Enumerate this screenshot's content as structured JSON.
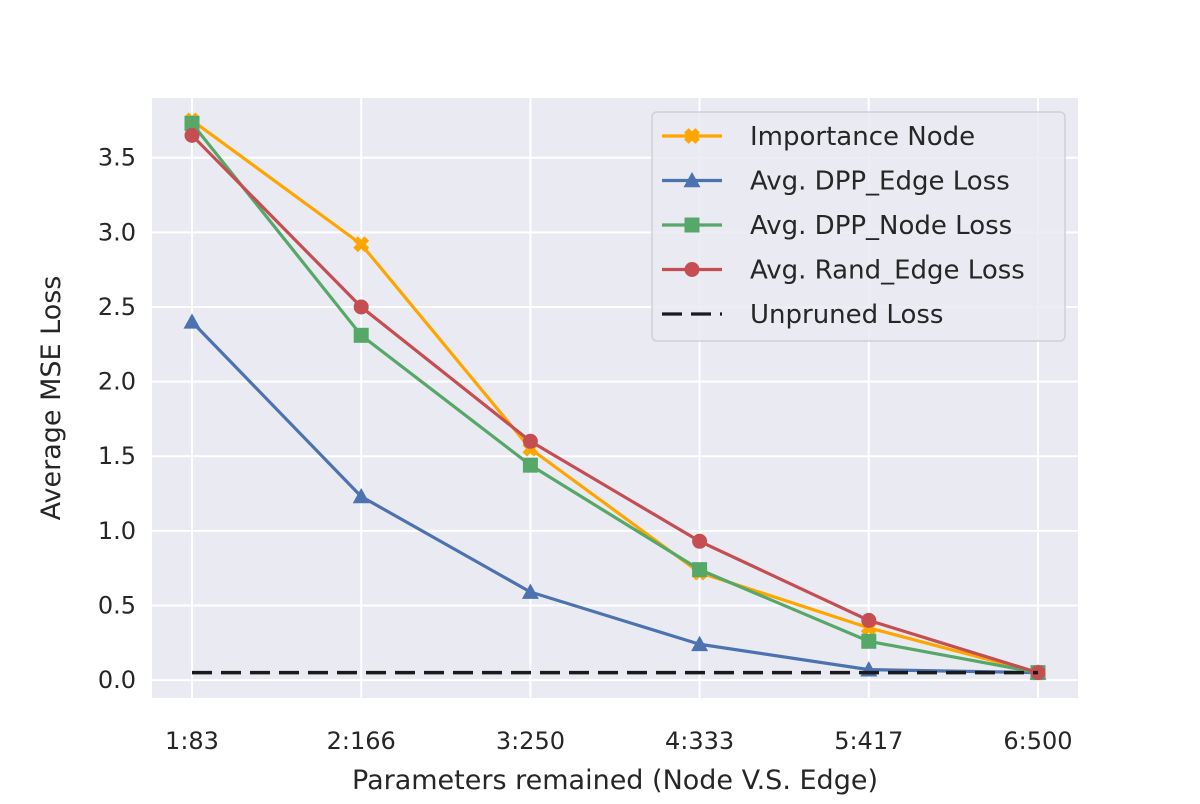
{
  "chart_data": {
    "type": "line",
    "title": "",
    "xlabel": "Parameters remained (Node V.S. Edge)",
    "ylabel": "Average MSE Loss",
    "categories": [
      "1:83",
      "2:166",
      "3:250",
      "4:333",
      "5:417",
      "6:500"
    ],
    "ylim": [
      -0.12,
      3.9
    ],
    "yticks": [
      "0.0",
      "0.5",
      "1.0",
      "1.5",
      "2.0",
      "2.5",
      "3.0",
      "3.5"
    ],
    "ytick_values": [
      0.0,
      0.5,
      1.0,
      1.5,
      2.0,
      2.5,
      3.0,
      3.5
    ],
    "grid": true,
    "legend_position": "top-right",
    "series": [
      {
        "name": "Importance Node",
        "color": "#FFA500",
        "marker": "plus-filled",
        "values": [
          3.75,
          2.92,
          1.55,
          0.72,
          0.35,
          0.05
        ]
      },
      {
        "name": "Avg. DPP_Edge Loss",
        "color": "#4C72B0",
        "marker": "triangle",
        "values": [
          2.4,
          1.23,
          0.59,
          0.24,
          0.07,
          0.05
        ]
      },
      {
        "name": "Avg. DPP_Node Loss",
        "color": "#55A868",
        "marker": "square",
        "values": [
          3.73,
          2.31,
          1.44,
          0.74,
          0.26,
          0.05
        ]
      },
      {
        "name": "Avg. Rand_Edge Loss",
        "color": "#C44E52",
        "marker": "circle",
        "values": [
          3.65,
          2.5,
          1.6,
          0.93,
          0.4,
          0.05
        ]
      },
      {
        "name": "Unpruned Loss",
        "color": "#1a1a1a",
        "marker": "none",
        "dashed": true,
        "values": [
          0.05,
          0.05,
          0.05,
          0.05,
          0.05,
          0.05
        ]
      }
    ]
  }
}
